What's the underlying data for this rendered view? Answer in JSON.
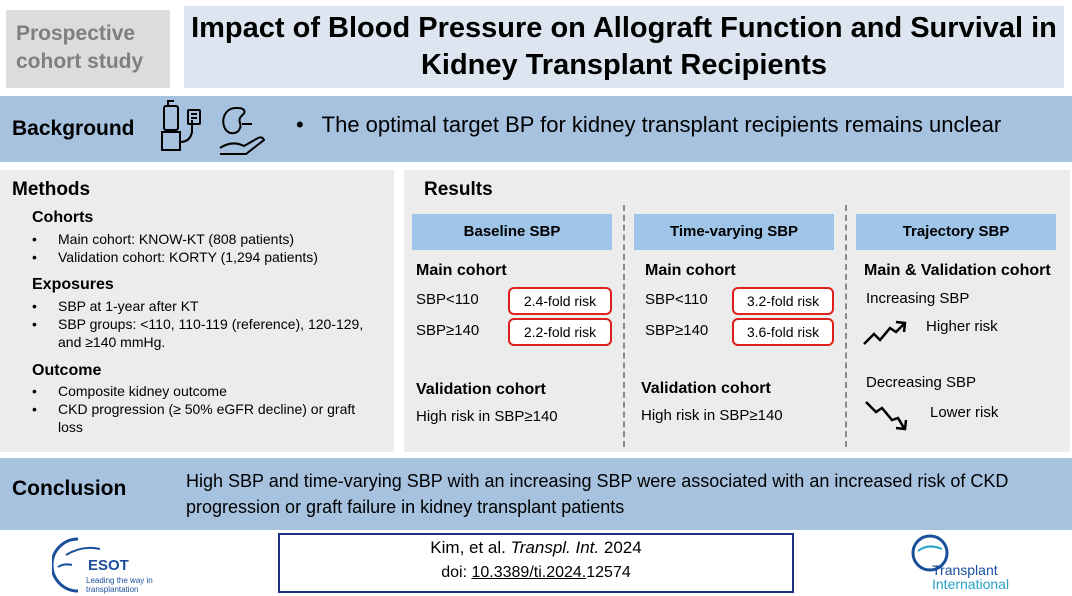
{
  "header": {
    "study_type": "Prospective cohort study",
    "title": "Impact of Blood Pressure on Allograft Function and Survival in Kidney Transplant Recipients"
  },
  "background": {
    "label": "Background",
    "bullet": "•",
    "text": "The optimal target BP for kidney transplant recipients remains unclear",
    "icons": [
      "blood-pressure-monitor-icon",
      "kidney-in-hand-icon"
    ]
  },
  "methods": {
    "title": "Methods",
    "sections": [
      {
        "heading": "Cohorts",
        "items": [
          "Main cohort: KNOW-KT (808 patients)",
          "Validation cohort: KORTY (1,294 patients)"
        ]
      },
      {
        "heading": "Exposures",
        "items": [
          "SBP at 1-year after KT",
          "SBP groups: <110, 110-119 (reference), 120-129, and ≥140 mmHg."
        ]
      },
      {
        "heading": "Outcome",
        "items": [
          "Composite kidney outcome",
          "CKD progression (≥ 50% eGFR decline) or graft loss"
        ]
      }
    ]
  },
  "results": {
    "title": "Results",
    "baseline": {
      "header": "Baseline SBP",
      "main_label": "Main cohort",
      "rows": [
        {
          "group": "SBP<110",
          "risk": "2.4-fold risk"
        },
        {
          "group": "SBP≥140",
          "risk": "2.2-fold risk"
        }
      ],
      "validation_label": "Validation cohort",
      "validation_text": "High risk in SBP≥140"
    },
    "time_varying": {
      "header": "Time-varying SBP",
      "main_label": "Main cohort",
      "rows": [
        {
          "group": "SBP<110",
          "risk": "3.2-fold risk"
        },
        {
          "group": "SBP≥140",
          "risk": "3.6-fold risk"
        }
      ],
      "validation_label": "Validation cohort",
      "validation_text": "High risk in SBP≥140"
    },
    "trajectory": {
      "header": "Trajectory SBP",
      "label": "Main & Validation cohort",
      "increasing": "Increasing SBP",
      "increasing_result": "Higher risk",
      "decreasing": "Decreasing SBP",
      "decreasing_result": "Lower risk"
    }
  },
  "conclusion": {
    "label": "Conclusion",
    "text": "High SBP and time-varying SBP with an increasing SBP were associated with an increased risk of CKD progression or graft failure in kidney transplant patients"
  },
  "footer": {
    "citation_authors": "Kim, et al.",
    "citation_journal": "Transpl. Int.",
    "citation_year": "2024",
    "doi_prefix": "doi:",
    "doi_link": "10.3389/ti.2024.",
    "doi_suffix": "12574",
    "left_logo_text": "ESOT",
    "left_logo_tagline": "Leading the way in transplantation",
    "right_logo_line1": "Transplant",
    "right_logo_line2": "International"
  },
  "colors": {
    "band": "#a6c2df",
    "title_box": "#dde6f0",
    "column_header": "#9fc5e8",
    "risk_border": "#e0201c",
    "citation_border": "#1f2d86"
  }
}
